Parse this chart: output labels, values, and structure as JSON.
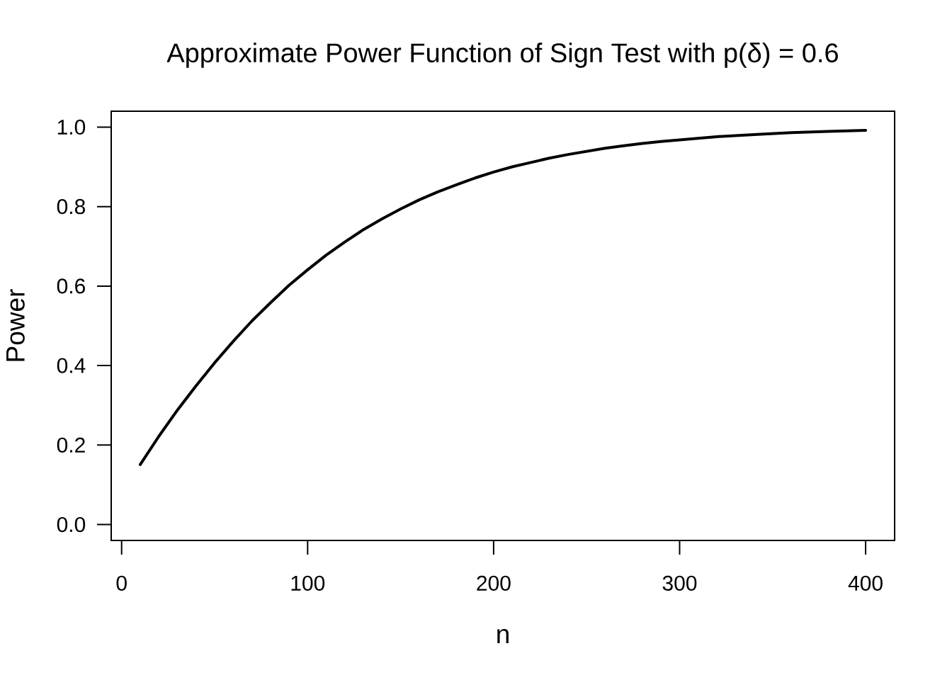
{
  "chart_data": {
    "type": "line",
    "title": "Approximate Power Function of Sign Test with p(δ) = 0.6",
    "xlabel": "n",
    "ylabel": "Power",
    "x": [
      10,
      20,
      30,
      40,
      50,
      60,
      70,
      80,
      90,
      100,
      110,
      120,
      130,
      140,
      150,
      160,
      170,
      180,
      190,
      200,
      210,
      220,
      230,
      240,
      250,
      260,
      270,
      280,
      290,
      300,
      320,
      340,
      360,
      380,
      400
    ],
    "series": [
      {
        "color": "#000000",
        "values": [
          0.151,
          0.222,
          0.288,
          0.349,
          0.407,
          0.461,
          0.512,
          0.558,
          0.602,
          0.641,
          0.678,
          0.711,
          0.742,
          0.769,
          0.794,
          0.817,
          0.837,
          0.855,
          0.872,
          0.887,
          0.9,
          0.911,
          0.922,
          0.931,
          0.939,
          0.947,
          0.953,
          0.959,
          0.964,
          0.968,
          0.976,
          0.981,
          0.986,
          0.989,
          0.992
        ]
      }
    ],
    "xlim": [
      -5.6,
      415.6
    ],
    "ylim": [
      -0.04,
      1.04
    ],
    "xticks": [
      0,
      100,
      200,
      300,
      400
    ],
    "yticks": [
      {
        "value": 0,
        "label": "0.0"
      },
      0.2,
      0.4,
      0.6,
      0.8,
      {
        "value": 1,
        "label": "1.0"
      }
    ],
    "line_style": "solid"
  }
}
